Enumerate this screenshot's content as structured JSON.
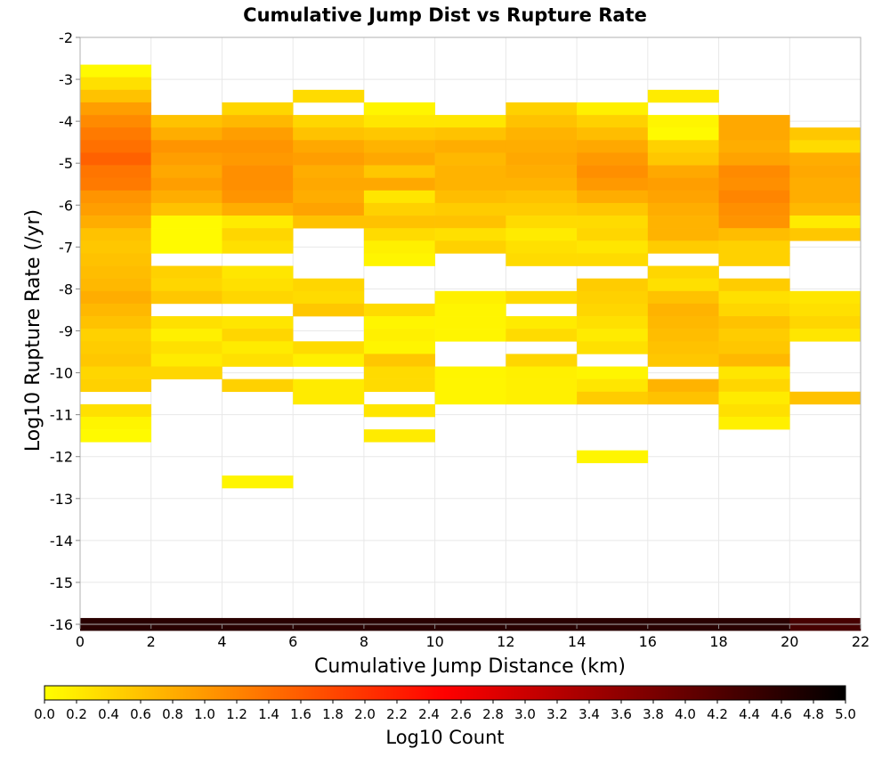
{
  "chart_data": {
    "type": "heatmap",
    "title": "Cumulative Jump Dist vs Rupture Rate",
    "xlabel": "Cumulative Jump Distance (km)",
    "ylabel": "Log10 Rupture Rate (/yr)",
    "xlim": [
      0,
      22
    ],
    "ylim": [
      -16,
      -2
    ],
    "x_ticks": [
      "0",
      "2",
      "4",
      "6",
      "8",
      "10",
      "12",
      "14",
      "16",
      "18",
      "20",
      "22"
    ],
    "y_ticks": [
      "-2",
      "-3",
      "-4",
      "-5",
      "-6",
      "-7",
      "-8",
      "-9",
      "-10",
      "-11",
      "-12",
      "-13",
      "-14",
      "-15",
      "-16"
    ],
    "x_bin_width": 2,
    "y_bin_height": 0.3,
    "grid": true,
    "colorbar": {
      "label": "Log10 Count",
      "range": [
        0,
        5
      ],
      "ticks": [
        "0.0",
        "0.2",
        "0.4",
        "0.6",
        "0.8",
        "1.0",
        "1.2",
        "1.4",
        "1.6",
        "1.8",
        "2.0",
        "2.2",
        "2.4",
        "2.6",
        "2.8",
        "3.0",
        "3.2",
        "3.4",
        "3.6",
        "3.8",
        "4.0",
        "4.2",
        "4.4",
        "4.6",
        "4.8",
        "5.0"
      ],
      "colors": [
        "#ffff00",
        "#ffaa00",
        "#ff5500",
        "#ff0000",
        "#aa0000",
        "#550000",
        "#000000"
      ]
    },
    "cells": [
      [
        1,
        -2.8,
        0.05
      ],
      [
        1,
        -3.1,
        0.3
      ],
      [
        1,
        -3.4,
        0.6
      ],
      [
        1,
        -3.7,
        0.95
      ],
      [
        1,
        -4.0,
        1.15
      ],
      [
        1,
        -4.3,
        1.3
      ],
      [
        1,
        -4.6,
        1.4
      ],
      [
        1,
        -4.9,
        1.55
      ],
      [
        1,
        -5.2,
        1.35
      ],
      [
        1,
        -5.5,
        1.3
      ],
      [
        1,
        -5.8,
        1.05
      ],
      [
        1,
        -6.1,
        0.95
      ],
      [
        1,
        -6.4,
        0.8
      ],
      [
        1,
        -6.7,
        0.6
      ],
      [
        1,
        -7.0,
        0.55
      ],
      [
        1,
        -7.3,
        0.6
      ],
      [
        1,
        -7.6,
        0.65
      ],
      [
        1,
        -7.9,
        0.7
      ],
      [
        1,
        -8.2,
        0.8
      ],
      [
        1,
        -8.5,
        0.7
      ],
      [
        1,
        -8.8,
        0.6
      ],
      [
        1,
        -9.1,
        0.45
      ],
      [
        1,
        -9.4,
        0.5
      ],
      [
        1,
        -9.7,
        0.55
      ],
      [
        1,
        -10.0,
        0.4
      ],
      [
        1,
        -10.3,
        0.45
      ],
      [
        1,
        -10.9,
        0.3
      ],
      [
        1,
        -11.2,
        0.1
      ],
      [
        1,
        -11.5,
        0.05
      ],
      [
        3,
        -4.0,
        0.6
      ],
      [
        3,
        -4.3,
        0.8
      ],
      [
        3,
        -4.6,
        1.05
      ],
      [
        3,
        -4.9,
        0.95
      ],
      [
        3,
        -5.2,
        0.85
      ],
      [
        3,
        -5.5,
        0.95
      ],
      [
        3,
        -5.8,
        0.8
      ],
      [
        3,
        -6.1,
        0.6
      ],
      [
        3,
        -6.4,
        0.05
      ],
      [
        3,
        -6.7,
        0.05
      ],
      [
        3,
        -7.0,
        0.05
      ],
      [
        3,
        -7.6,
        0.45
      ],
      [
        3,
        -7.9,
        0.4
      ],
      [
        3,
        -8.2,
        0.55
      ],
      [
        3,
        -8.8,
        0.3
      ],
      [
        3,
        -9.1,
        0.15
      ],
      [
        3,
        -9.4,
        0.3
      ],
      [
        3,
        -9.7,
        0.2
      ],
      [
        3,
        -10.0,
        0.4
      ],
      [
        5,
        -3.7,
        0.4
      ],
      [
        5,
        -4.0,
        0.7
      ],
      [
        5,
        -4.3,
        0.95
      ],
      [
        5,
        -4.6,
        1.05
      ],
      [
        5,
        -4.9,
        1.0
      ],
      [
        5,
        -5.2,
        1.1
      ],
      [
        5,
        -5.5,
        1.1
      ],
      [
        5,
        -5.8,
        1.05
      ],
      [
        5,
        -6.1,
        0.8
      ],
      [
        5,
        -6.4,
        0.2
      ],
      [
        5,
        -6.7,
        0.4
      ],
      [
        5,
        -7.0,
        0.3
      ],
      [
        5,
        -7.6,
        0.25
      ],
      [
        5,
        -7.9,
        0.3
      ],
      [
        5,
        -8.2,
        0.4
      ],
      [
        5,
        -8.8,
        0.25
      ],
      [
        5,
        -9.1,
        0.4
      ],
      [
        5,
        -9.4,
        0.2
      ],
      [
        5,
        -9.7,
        0.3
      ],
      [
        5,
        -10.3,
        0.45
      ],
      [
        5,
        -12.6,
        0.1
      ],
      [
        7,
        -3.4,
        0.35
      ],
      [
        7,
        -4.0,
        0.4
      ],
      [
        7,
        -4.3,
        0.6
      ],
      [
        7,
        -4.6,
        0.85
      ],
      [
        7,
        -4.9,
        0.95
      ],
      [
        7,
        -5.2,
        0.8
      ],
      [
        7,
        -5.5,
        0.85
      ],
      [
        7,
        -5.8,
        0.8
      ],
      [
        7,
        -6.1,
        0.9
      ],
      [
        7,
        -6.4,
        0.6
      ],
      [
        7,
        -7.9,
        0.4
      ],
      [
        7,
        -8.2,
        0.35
      ],
      [
        7,
        -8.5,
        0.55
      ],
      [
        7,
        -9.4,
        0.35
      ],
      [
        7,
        -9.7,
        0.15
      ],
      [
        7,
        -10.3,
        0.2
      ],
      [
        7,
        -10.6,
        0.2
      ],
      [
        9,
        -3.7,
        0.1
      ],
      [
        9,
        -4.0,
        0.25
      ],
      [
        9,
        -4.3,
        0.55
      ],
      [
        9,
        -4.6,
        0.75
      ],
      [
        9,
        -4.9,
        0.85
      ],
      [
        9,
        -5.2,
        0.55
      ],
      [
        9,
        -5.5,
        0.85
      ],
      [
        9,
        -5.8,
        0.25
      ],
      [
        9,
        -6.1,
        0.45
      ],
      [
        9,
        -6.4,
        0.6
      ],
      [
        9,
        -6.7,
        0.35
      ],
      [
        9,
        -7.0,
        0.15
      ],
      [
        9,
        -7.3,
        0.1
      ],
      [
        9,
        -8.5,
        0.35
      ],
      [
        9,
        -8.8,
        0.1
      ],
      [
        9,
        -9.1,
        0.15
      ],
      [
        9,
        -9.4,
        0.1
      ],
      [
        9,
        -9.7,
        0.55
      ],
      [
        9,
        -10.0,
        0.35
      ],
      [
        9,
        -10.3,
        0.35
      ],
      [
        9,
        -10.9,
        0.25
      ],
      [
        9,
        -11.5,
        0.2
      ],
      [
        11,
        -4.0,
        0.25
      ],
      [
        11,
        -4.3,
        0.6
      ],
      [
        11,
        -4.6,
        0.8
      ],
      [
        11,
        -4.9,
        0.7
      ],
      [
        11,
        -5.2,
        0.75
      ],
      [
        11,
        -5.5,
        0.75
      ],
      [
        11,
        -5.8,
        0.65
      ],
      [
        11,
        -6.1,
        0.5
      ],
      [
        11,
        -6.4,
        0.6
      ],
      [
        11,
        -6.7,
        0.3
      ],
      [
        11,
        -7.0,
        0.45
      ],
      [
        11,
        -8.2,
        0.15
      ],
      [
        11,
        -8.5,
        0.1
      ],
      [
        11,
        -8.8,
        0.1
      ],
      [
        11,
        -9.1,
        0.1
      ],
      [
        11,
        -10.0,
        0.1
      ],
      [
        11,
        -10.3,
        0.1
      ],
      [
        11,
        -10.6,
        0.1
      ],
      [
        13,
        -3.7,
        0.45
      ],
      [
        13,
        -4.0,
        0.6
      ],
      [
        13,
        -4.3,
        0.75
      ],
      [
        13,
        -4.6,
        0.8
      ],
      [
        13,
        -4.9,
        0.85
      ],
      [
        13,
        -5.2,
        0.8
      ],
      [
        13,
        -5.5,
        0.75
      ],
      [
        13,
        -5.8,
        0.6
      ],
      [
        13,
        -6.1,
        0.5
      ],
      [
        13,
        -6.4,
        0.35
      ],
      [
        13,
        -6.7,
        0.2
      ],
      [
        13,
        -7.0,
        0.3
      ],
      [
        13,
        -7.3,
        0.35
      ],
      [
        13,
        -8.2,
        0.35
      ],
      [
        13,
        -8.8,
        0.2
      ],
      [
        13,
        -9.1,
        0.35
      ],
      [
        13,
        -9.7,
        0.4
      ],
      [
        13,
        -10.0,
        0.15
      ],
      [
        13,
        -10.3,
        0.15
      ],
      [
        13,
        -10.6,
        0.15
      ],
      [
        15,
        -3.7,
        0.15
      ],
      [
        15,
        -4.0,
        0.45
      ],
      [
        15,
        -4.3,
        0.65
      ],
      [
        15,
        -4.6,
        0.85
      ],
      [
        15,
        -4.9,
        1.0
      ],
      [
        15,
        -5.2,
        1.1
      ],
      [
        15,
        -5.5,
        1.0
      ],
      [
        15,
        -5.8,
        0.8
      ],
      [
        15,
        -6.1,
        0.55
      ],
      [
        15,
        -6.4,
        0.35
      ],
      [
        15,
        -6.7,
        0.4
      ],
      [
        15,
        -7.0,
        0.25
      ],
      [
        15,
        -7.3,
        0.35
      ],
      [
        15,
        -7.9,
        0.5
      ],
      [
        15,
        -8.2,
        0.45
      ],
      [
        15,
        -8.5,
        0.4
      ],
      [
        15,
        -8.8,
        0.3
      ],
      [
        15,
        -9.1,
        0.2
      ],
      [
        15,
        -9.4,
        0.3
      ],
      [
        15,
        -10.0,
        0.1
      ],
      [
        15,
        -10.3,
        0.25
      ],
      [
        15,
        -10.6,
        0.5
      ],
      [
        15,
        -12.0,
        0.1
      ],
      [
        17,
        -3.4,
        0.2
      ],
      [
        17,
        -4.0,
        0.1
      ],
      [
        17,
        -4.3,
        0.05
      ],
      [
        17,
        -4.6,
        0.45
      ],
      [
        17,
        -4.9,
        0.55
      ],
      [
        17,
        -5.2,
        0.85
      ],
      [
        17,
        -5.5,
        0.95
      ],
      [
        17,
        -5.8,
        0.9
      ],
      [
        17,
        -6.1,
        0.8
      ],
      [
        17,
        -6.4,
        0.75
      ],
      [
        17,
        -6.7,
        0.75
      ],
      [
        17,
        -7.0,
        0.5
      ],
      [
        17,
        -7.6,
        0.4
      ],
      [
        17,
        -7.9,
        0.3
      ],
      [
        17,
        -8.2,
        0.6
      ],
      [
        17,
        -8.5,
        0.75
      ],
      [
        17,
        -8.8,
        0.7
      ],
      [
        17,
        -9.1,
        0.65
      ],
      [
        17,
        -9.4,
        0.6
      ],
      [
        17,
        -9.7,
        0.55
      ],
      [
        17,
        -10.3,
        0.75
      ],
      [
        17,
        -10.6,
        0.6
      ],
      [
        19,
        -4.0,
        0.85
      ],
      [
        19,
        -4.3,
        0.85
      ],
      [
        19,
        -4.6,
        0.8
      ],
      [
        19,
        -4.9,
        0.9
      ],
      [
        19,
        -5.2,
        1.15
      ],
      [
        19,
        -5.5,
        1.1
      ],
      [
        19,
        -5.8,
        1.2
      ],
      [
        19,
        -6.1,
        1.1
      ],
      [
        19,
        -6.4,
        1.05
      ],
      [
        19,
        -6.7,
        0.65
      ],
      [
        19,
        -7.0,
        0.45
      ],
      [
        19,
        -7.3,
        0.45
      ],
      [
        19,
        -7.9,
        0.5
      ],
      [
        19,
        -8.2,
        0.3
      ],
      [
        19,
        -8.5,
        0.4
      ],
      [
        19,
        -8.8,
        0.6
      ],
      [
        19,
        -9.1,
        0.5
      ],
      [
        19,
        -9.4,
        0.55
      ],
      [
        19,
        -9.7,
        0.7
      ],
      [
        19,
        -10.0,
        0.25
      ],
      [
        19,
        -10.3,
        0.4
      ],
      [
        19,
        -10.6,
        0.2
      ],
      [
        19,
        -10.9,
        0.3
      ],
      [
        19,
        -11.2,
        0.15
      ],
      [
        21,
        -4.3,
        0.55
      ],
      [
        21,
        -4.6,
        0.35
      ],
      [
        21,
        -4.9,
        0.8
      ],
      [
        21,
        -5.2,
        0.85
      ],
      [
        21,
        -5.5,
        0.8
      ],
      [
        21,
        -5.8,
        0.8
      ],
      [
        21,
        -6.1,
        0.7
      ],
      [
        21,
        -6.4,
        0.2
      ],
      [
        21,
        -6.7,
        0.55
      ],
      [
        21,
        -8.2,
        0.25
      ],
      [
        21,
        -8.5,
        0.3
      ],
      [
        21,
        -8.8,
        0.4
      ],
      [
        21,
        -9.1,
        0.25
      ],
      [
        21,
        -10.6,
        0.6
      ],
      [
        1,
        -16.0,
        4.6
      ],
      [
        3,
        -16.0,
        4.6
      ],
      [
        5,
        -16.0,
        4.6
      ],
      [
        7,
        -16.0,
        4.6
      ],
      [
        9,
        -16.0,
        4.6
      ],
      [
        11,
        -16.0,
        4.6
      ],
      [
        13,
        -16.0,
        4.6
      ],
      [
        15,
        -16.0,
        4.6
      ],
      [
        17,
        -16.0,
        4.6
      ],
      [
        19,
        -16.0,
        4.6
      ],
      [
        21,
        -16.0,
        4.3
      ]
    ]
  }
}
